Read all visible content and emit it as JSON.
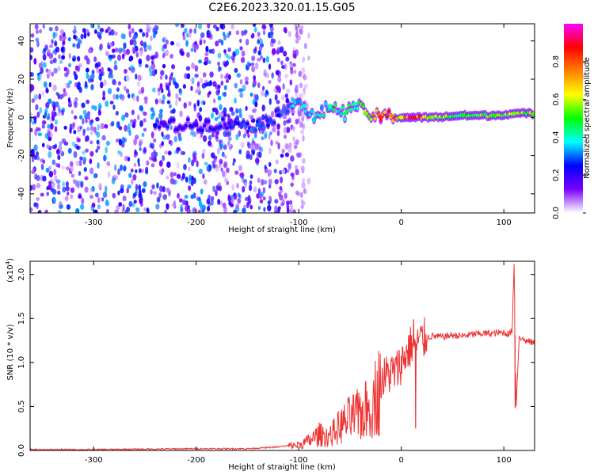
{
  "title": "C2E6.2023.320.01.15.G05",
  "chart_data": [
    {
      "type": "heatmap",
      "xlabel": "Height of straight line (km)",
      "ylabel": "Frequency (Hz)",
      "xlim": [
        -362,
        130
      ],
      "ylim": [
        -50,
        49
      ],
      "xticks": [
        -300,
        -200,
        -100,
        0,
        100
      ],
      "yticks": [
        -40,
        -20,
        0,
        20,
        40
      ],
      "colorbar": {
        "label": "Normalized spectral amplitude",
        "range": [
          0.0,
          1.0
        ],
        "ticks": [
          "0.0",
          "0.2",
          "0.4",
          "0.6",
          "0.8"
        ],
        "tick_values": [
          0.0,
          0.2,
          0.4,
          0.6,
          0.8
        ],
        "colors": [
          "#ffffff",
          "#7a00ff",
          "#0000ff",
          "#00ffff",
          "#00ff00",
          "#ffff00",
          "#ff8000",
          "#ff0000",
          "#ff00ff"
        ]
      },
      "noise_region": {
        "x": [
          -362,
          -100
        ],
        "f": [
          -50,
          49
        ],
        "amplitude": [
          0.0,
          0.2
        ]
      },
      "signal_track": [
        {
          "x": -240,
          "f": -4,
          "amp": 0.25
        },
        {
          "x": -200,
          "f": -4,
          "amp": 0.2
        },
        {
          "x": -160,
          "f": -3,
          "amp": 0.25
        },
        {
          "x": -140,
          "f": -4,
          "amp": 0.3
        },
        {
          "x": -120,
          "f": 1,
          "amp": 0.25
        },
        {
          "x": -105,
          "f": 9,
          "amp": 0.35
        },
        {
          "x": -95,
          "f": 6,
          "amp": 0.4
        },
        {
          "x": -85,
          "f": -1,
          "amp": 0.35
        },
        {
          "x": -70,
          "f": 6,
          "amp": 0.4
        },
        {
          "x": -55,
          "f": 2,
          "amp": 0.45
        },
        {
          "x": -45,
          "f": 7,
          "amp": 0.4
        },
        {
          "x": -35,
          "f": 2,
          "amp": 0.55
        },
        {
          "x": -20,
          "f": 0,
          "amp": 0.85
        },
        {
          "x": -10,
          "f": 1,
          "amp": 0.75
        },
        {
          "x": 0,
          "f": 0,
          "amp": 0.6
        },
        {
          "x": 10,
          "f": 0,
          "amp": 0.9
        },
        {
          "x": 30,
          "f": 0,
          "amp": 0.55
        },
        {
          "x": 60,
          "f": 1,
          "amp": 0.5
        },
        {
          "x": 90,
          "f": 1,
          "amp": 0.5
        },
        {
          "x": 110,
          "f": 2,
          "amp": 0.55
        },
        {
          "x": 130,
          "f": 2,
          "amp": 0.55
        }
      ]
    },
    {
      "type": "line",
      "xlabel": "Height of straight line (km)",
      "ylabel": "SNR (10 * v/v)",
      "y_multiplier": "(x10",
      "y_multiplier_exp": "4",
      "y_multiplier_close": ")",
      "xlim": [
        -362,
        130
      ],
      "ylim": [
        0.0,
        2.15
      ],
      "xticks": [
        -300,
        -200,
        -100,
        0,
        100
      ],
      "yticks": [
        "0.0",
        "0.5",
        "1.0",
        "1.5",
        "2.0"
      ],
      "ytick_values": [
        0.0,
        0.5,
        1.0,
        1.5,
        2.0
      ],
      "color": "#ee3333",
      "x": [
        -362,
        -300,
        -200,
        -150,
        -120,
        -100,
        -90,
        -80,
        -70,
        -60,
        -50,
        -40,
        -30,
        -25,
        -20,
        -15,
        -10,
        -5,
        0,
        5,
        10,
        15,
        20,
        25,
        30,
        40,
        50,
        60,
        70,
        80,
        90,
        100,
        105,
        108,
        110,
        112,
        115,
        120,
        130
      ],
      "y": [
        0.01,
        0.01,
        0.02,
        0.02,
        0.04,
        0.07,
        0.12,
        0.2,
        0.18,
        0.3,
        0.4,
        0.45,
        0.55,
        0.7,
        0.8,
        0.85,
        0.88,
        0.9,
        1.0,
        1.1,
        1.2,
        1.24,
        1.25,
        1.28,
        1.3,
        1.29,
        1.31,
        1.3,
        1.32,
        1.33,
        1.33,
        1.34,
        1.32,
        1.36,
        2.12,
        0.5,
        1.3,
        1.25,
        1.22
      ],
      "spikes": [
        {
          "x": 12,
          "y": 1.49
        },
        {
          "x": 14,
          "y": 0.25
        },
        {
          "x": 110,
          "y": 2.12
        },
        {
          "x": 111,
          "y": 0.48
        }
      ]
    }
  ]
}
